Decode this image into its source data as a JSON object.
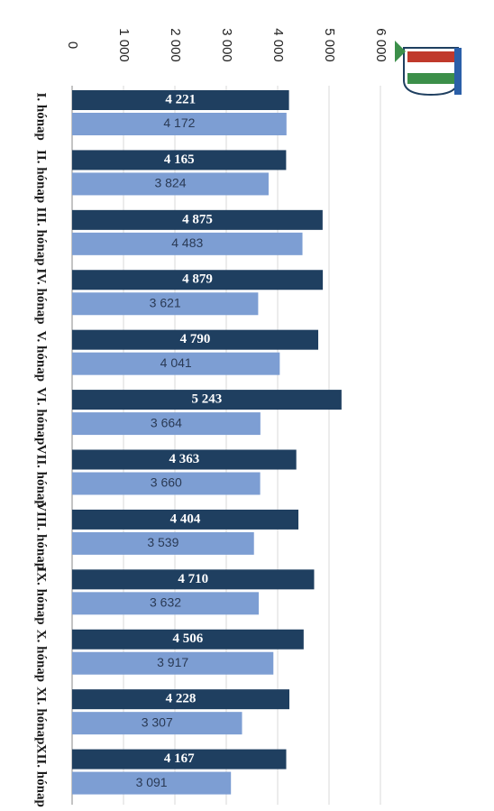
{
  "chart_data": {
    "type": "bar",
    "orientation": "horizontal",
    "categories": [
      "I. hónap",
      "II. hónap",
      "III. hónap",
      "IV. hónap",
      "V. hónap",
      "VI. hónap",
      "VII. hónap",
      "VIII. hónap",
      "IX. hónap",
      "X. hónap",
      "XI. hónap",
      "XII. hónap"
    ],
    "series": [
      {
        "color": "#1f3f60",
        "values": [
          4221,
          4165,
          4875,
          4879,
          4790,
          5243,
          4363,
          4404,
          4710,
          4506,
          4228,
          4167
        ],
        "value_labels": [
          "4 221",
          "4 165",
          "4 875",
          "4 879",
          "4 790",
          "5 243",
          "4 363",
          "4 404",
          "4 710",
          "4 506",
          "4 228",
          "4 167"
        ]
      },
      {
        "color": "#7d9ed3",
        "values": [
          4172,
          3824,
          4483,
          3621,
          4041,
          3664,
          3660,
          3539,
          3632,
          3917,
          3307,
          3091
        ],
        "value_labels": [
          "4 172",
          "3 824",
          "4 483",
          "3 621",
          "4 041",
          "3 664",
          "3 660",
          "3 539",
          "3 632",
          "3 917",
          "3 307",
          "3 091"
        ]
      }
    ],
    "xlim": [
      0,
      6000
    ],
    "xticks": [
      0,
      {
        "value": 1000,
        "label": "1 000"
      },
      {
        "value": 2000,
        "label": "2 000"
      },
      {
        "value": 3000,
        "label": "3 000"
      },
      {
        "value": 4000,
        "label": "4 000"
      },
      {
        "value": 5000,
        "label": "5 000"
      },
      {
        "value": 6000,
        "label": "6 000"
      }
    ],
    "grid": true
  }
}
